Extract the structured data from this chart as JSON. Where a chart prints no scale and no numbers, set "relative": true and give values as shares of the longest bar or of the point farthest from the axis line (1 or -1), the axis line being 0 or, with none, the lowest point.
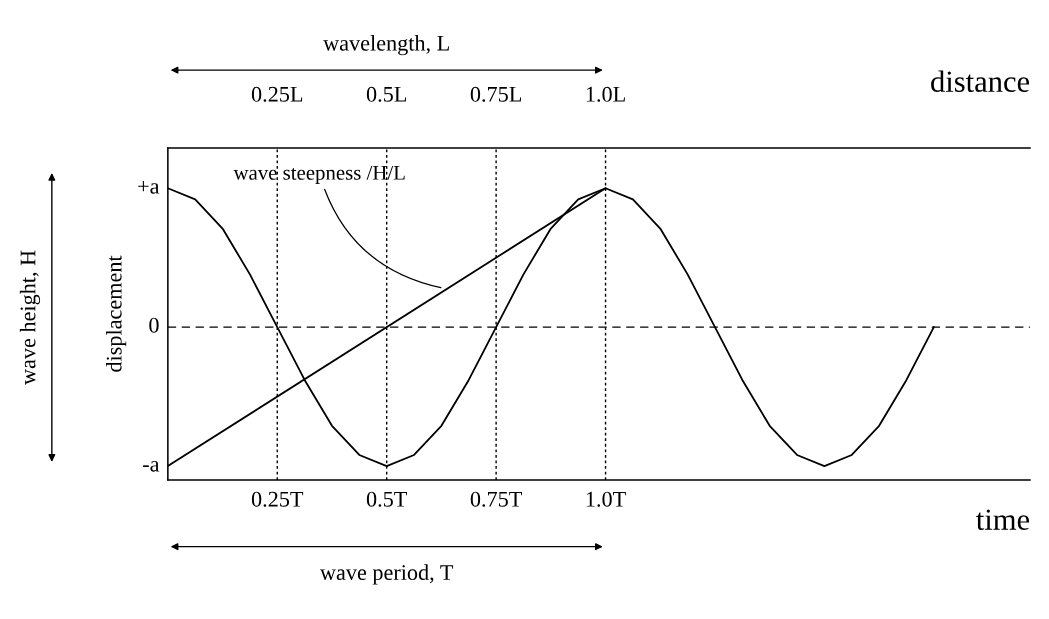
{
  "chart_data": {
    "type": "line",
    "xlabel": "time",
    "x2label": "distance",
    "ylabel": "displacement",
    "xlim": [
      0,
      1.97
    ],
    "relative": true,
    "xticks": [
      {
        "value": 0.25,
        "label": "0.25T"
      },
      {
        "value": 0.5,
        "label": "0.5T"
      },
      {
        "value": 0.75,
        "label": "0.75T"
      },
      {
        "value": 1.0,
        "label": "1.0T"
      }
    ],
    "x2lim": [
      0,
      1.97
    ],
    "x2ticks": [
      {
        "value": 0.25,
        "label": "0.25L"
      },
      {
        "value": 0.5,
        "label": "0.5L"
      },
      {
        "value": 0.75,
        "label": "0.75L"
      },
      {
        "value": 1.0,
        "label": "1.0L"
      }
    ],
    "series": [
      {
        "color": "#000000",
        "x": [
          0,
          0.0625,
          0.125,
          0.1875,
          0.25,
          0.3125,
          0.375,
          0.4375,
          0.5,
          0.5625,
          0.625,
          0.6875,
          0.75,
          0.8125,
          0.875,
          0.9375,
          1.0,
          1.0625,
          1.125,
          1.1875,
          1.25,
          1.3125,
          1.375,
          1.4375,
          1.5,
          1.5625,
          1.625,
          1.6875,
          1.75
        ],
        "values": [
          1,
          0.92,
          0.71,
          0.38,
          0,
          -0.38,
          -0.71,
          -0.92,
          -1,
          -0.92,
          -0.71,
          -0.38,
          0,
          0.38,
          0.71,
          0.92,
          1,
          0.92,
          0.71,
          0.38,
          0,
          -0.38,
          -0.71,
          -0.92,
          -1,
          -0.92,
          -0.71,
          -0.38,
          0
        ]
      },
      {
        "color": "#000000",
        "x": [
          0,
          1.0
        ],
        "values": [
          -1,
          1
        ]
      }
    ],
    "ref_lines": [
      {
        "axis": "x",
        "value": 0.25,
        "line_style": "dotted"
      },
      {
        "axis": "x",
        "value": 0.5,
        "line_style": "dotted"
      },
      {
        "axis": "x",
        "value": 0.75,
        "line_style": "dotted"
      },
      {
        "axis": "x",
        "value": 1.0,
        "line_style": "dotted"
      },
      {
        "axis": "y",
        "value": 0,
        "line_style": "dashed"
      }
    ],
    "annotations": [
      "wavelength, L",
      "wave period, T",
      "wave height, H",
      "wave steepness /H/L",
      "+a",
      "0",
      "-a"
    ],
    "grid": false,
    "legend": false,
    "marker": "none",
    "line_style": "solid"
  }
}
